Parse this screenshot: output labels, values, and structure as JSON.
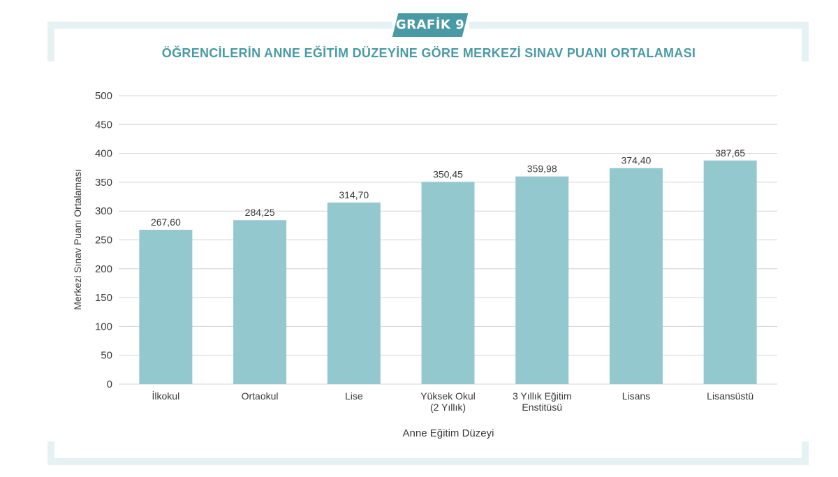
{
  "header": {
    "badge": "GRAFİK 9",
    "title": "ÖĞRENCİLERİN ANNE EĞİTİM DÜZEYİNE GÖRE MERKEZİ SINAV PUANI ORTALAMASI"
  },
  "colors": {
    "accent": "#4a9aa6",
    "bar": "#93c8ce",
    "frame": "#e6f1f3"
  },
  "chart_data": {
    "type": "bar",
    "categories": [
      "İlkokul",
      "Ortaokul",
      "Lise",
      "Yüksek Okul\n(2 Yıllık)",
      "3 Yıllık Eğitim\nEnstitüsü",
      "Lisans",
      "Lisansüstü"
    ],
    "values": [
      267.6,
      284.25,
      314.7,
      350.45,
      359.98,
      374.4,
      387.65
    ],
    "value_labels": [
      "267,60",
      "284,25",
      "314,70",
      "350,45",
      "359,98",
      "374,40",
      "387,65"
    ],
    "title": "ÖĞRENCİLERİN ANNE EĞİTİM DÜZEYİNE GÖRE MERKEZİ SINAV PUANI ORTALAMASI",
    "xlabel": "Anne Eğitim Düzeyi",
    "ylabel": "Merkezi Sınav Puanı Ortalaması",
    "ylim": [
      0,
      500
    ],
    "yticks": [
      0,
      50,
      100,
      150,
      200,
      250,
      300,
      350,
      400,
      450,
      500
    ],
    "grid": true,
    "legend": "none"
  }
}
